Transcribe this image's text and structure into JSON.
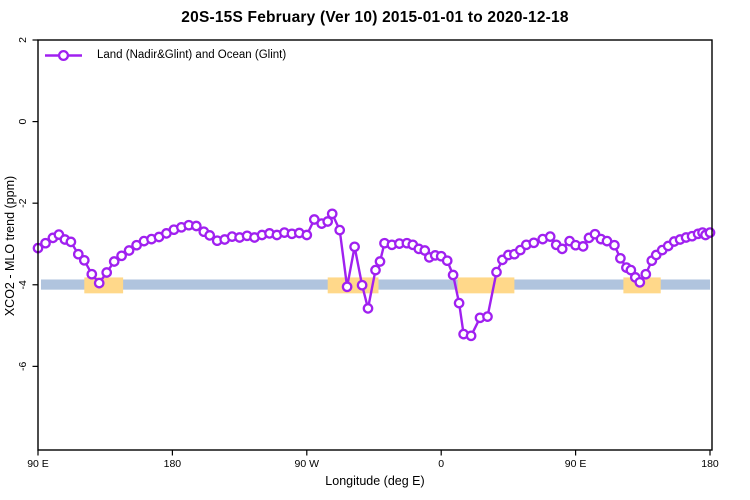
{
  "title": "20S-15S February (Ver 10)  2015-01-01 to 2020-12-18",
  "legend": {
    "label": "Land (Nadir&Glint) and Ocean (Glint)",
    "marker": "open-circle",
    "line_color": "#A020F0"
  },
  "axes": {
    "x_label": "Longitude (deg E)",
    "y_label": "XCO2 - MLO trend (ppm)"
  },
  "chart_data": {
    "type": "line",
    "title": "20S-15S February (Ver 10)  2015-01-01 to 2020-12-18",
    "xlabel": "Longitude (deg E)",
    "ylabel": "XCO2 - MLO trend (ppm)",
    "xlim": [
      90,
      540
    ],
    "ylim": [
      -8.05,
      2
    ],
    "grid": false,
    "legend_position": "top-left",
    "x_ticks": [
      {
        "lon": 90,
        "label": "90 E"
      },
      {
        "lon": 180,
        "label": "180"
      },
      {
        "lon": 270,
        "label": "90 W"
      },
      {
        "lon": 360,
        "label": "0"
      },
      {
        "lon": 450,
        "label": "90 E"
      },
      {
        "lon": 540,
        "label": "180"
      }
    ],
    "y_ticks": [
      {
        "v": 2,
        "label": "2"
      },
      {
        "v": 0,
        "label": "0"
      },
      {
        "v": -2,
        "label": "-2"
      },
      {
        "v": -4,
        "label": "-4"
      },
      {
        "v": -6,
        "label": "-6"
      }
    ],
    "bands": [
      {
        "name": "ocean-glint-band",
        "color": "#B0C4DE",
        "y_top": -3.87,
        "y_bottom": -4.12,
        "segments": [
          [
            92,
            540
          ]
        ]
      },
      {
        "name": "land-band",
        "color": "#FFD88A",
        "y_top": -3.82,
        "y_bottom": -4.21,
        "segments": [
          [
            121,
            147
          ],
          [
            284,
            318
          ],
          [
            371,
            409
          ],
          [
            482,
            507
          ]
        ]
      }
    ],
    "series": [
      {
        "name": "Land (Nadir&Glint) and Ocean (Glint)",
        "color": "#A020F0",
        "marker": "open-circle",
        "marker_fill": "#FFFFFF",
        "points": [
          [
            90,
            -3.1
          ],
          [
            95,
            -2.98
          ],
          [
            100,
            -2.85
          ],
          [
            104,
            -2.77
          ],
          [
            108,
            -2.89
          ],
          [
            112,
            -2.95
          ],
          [
            117,
            -3.25
          ],
          [
            121,
            -3.4
          ],
          [
            126,
            -3.74
          ],
          [
            131,
            -3.96
          ],
          [
            136,
            -3.7
          ],
          [
            141,
            -3.43
          ],
          [
            146,
            -3.29
          ],
          [
            151,
            -3.16
          ],
          [
            156,
            -3.03
          ],
          [
            161,
            -2.93
          ],
          [
            166,
            -2.88
          ],
          [
            171,
            -2.83
          ],
          [
            176,
            -2.74
          ],
          [
            181,
            -2.65
          ],
          [
            186,
            -2.59
          ],
          [
            191,
            -2.54
          ],
          [
            196,
            -2.56
          ],
          [
            201,
            -2.7
          ],
          [
            205,
            -2.79
          ],
          [
            210,
            -2.92
          ],
          [
            215,
            -2.89
          ],
          [
            220,
            -2.82
          ],
          [
            225,
            -2.84
          ],
          [
            230,
            -2.8
          ],
          [
            235,
            -2.84
          ],
          [
            240,
            -2.78
          ],
          [
            245,
            -2.74
          ],
          [
            250,
            -2.78
          ],
          [
            255,
            -2.72
          ],
          [
            260,
            -2.75
          ],
          [
            265,
            -2.73
          ],
          [
            270,
            -2.78
          ],
          [
            275,
            -2.4
          ],
          [
            280,
            -2.5
          ],
          [
            284,
            -2.45
          ],
          [
            287,
            -2.26
          ],
          [
            292,
            -2.66
          ],
          [
            297,
            -4.05
          ],
          [
            302,
            -3.07
          ],
          [
            307,
            -4.01
          ],
          [
            311,
            -4.58
          ],
          [
            316,
            -3.64
          ],
          [
            319,
            -3.43
          ],
          [
            322,
            -2.98
          ],
          [
            327,
            -3.02
          ],
          [
            332,
            -2.99
          ],
          [
            337,
            -2.98
          ],
          [
            341,
            -3.02
          ],
          [
            345,
            -3.12
          ],
          [
            349,
            -3.16
          ],
          [
            352,
            -3.33
          ],
          [
            356,
            -3.28
          ],
          [
            360,
            -3.3
          ],
          [
            364,
            -3.41
          ],
          [
            368,
            -3.76
          ],
          [
            372,
            -4.45
          ],
          [
            375,
            -5.21
          ],
          [
            380,
            -5.25
          ],
          [
            386,
            -4.81
          ],
          [
            391,
            -4.78
          ],
          [
            397,
            -3.69
          ],
          [
            401,
            -3.39
          ],
          [
            405,
            -3.27
          ],
          [
            409,
            -3.25
          ],
          [
            413,
            -3.15
          ],
          [
            417,
            -3.02
          ],
          [
            422,
            -2.97
          ],
          [
            428,
            -2.88
          ],
          [
            433,
            -2.82
          ],
          [
            437,
            -3.02
          ],
          [
            441,
            -3.12
          ],
          [
            446,
            -2.93
          ],
          [
            450,
            -3.03
          ],
          [
            455,
            -3.06
          ],
          [
            459,
            -2.85
          ],
          [
            463,
            -2.76
          ],
          [
            467,
            -2.88
          ],
          [
            471,
            -2.93
          ],
          [
            476,
            -3.03
          ],
          [
            480,
            -3.35
          ],
          [
            484,
            -3.58
          ],
          [
            487,
            -3.64
          ],
          [
            490,
            -3.82
          ],
          [
            493,
            -3.94
          ],
          [
            497,
            -3.74
          ],
          [
            501,
            -3.41
          ],
          [
            504,
            -3.27
          ],
          [
            508,
            -3.15
          ],
          [
            512,
            -3.05
          ],
          [
            516,
            -2.94
          ],
          [
            520,
            -2.89
          ],
          [
            524,
            -2.84
          ],
          [
            528,
            -2.81
          ],
          [
            532,
            -2.75
          ],
          [
            535,
            -2.72
          ],
          [
            537,
            -2.78
          ],
          [
            540,
            -2.72
          ]
        ]
      }
    ]
  }
}
